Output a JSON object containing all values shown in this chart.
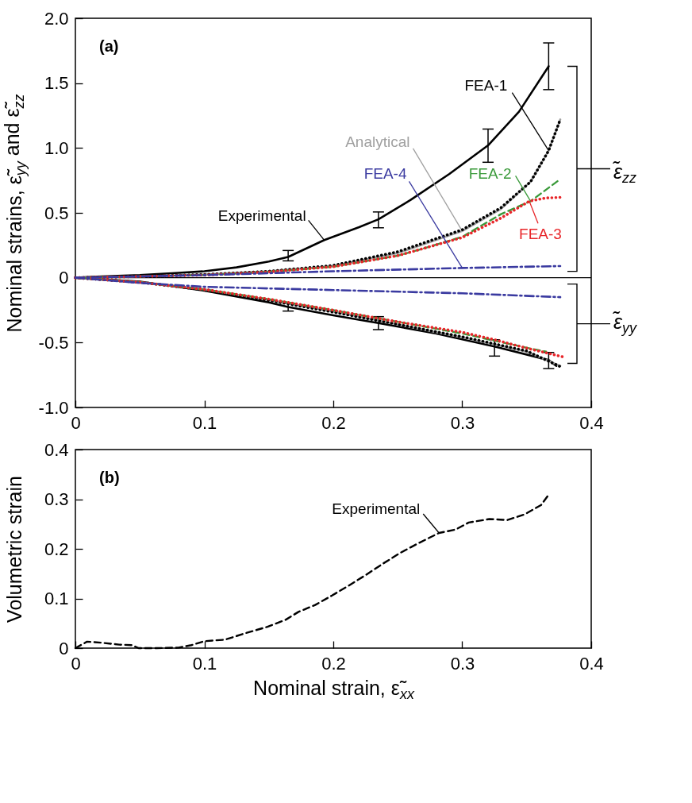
{
  "chart_data": [
    {
      "type": "line",
      "ylabel": "Nominal strains, ε̃$_{yy}$ and ε̃$_{zz}$",
      "annotations": [
        "(a)",
        "ε̃$_{zz}$",
        "ε̃$_{yy}$"
      ],
      "xlim": [
        0,
        0.4
      ],
      "xticks": [
        0,
        0.1,
        0.2,
        0.3,
        0.4
      ],
      "ylim": [
        -1,
        2
      ],
      "yticks": [
        {
          "value": -1,
          "label": "-1.0"
        },
        -0.5,
        0,
        0.5,
        {
          "value": 1,
          "label": "1.0"
        },
        1.5,
        {
          "value": 2,
          "label": "2.0"
        }
      ],
      "ref_lines": [
        {
          "axis": "y",
          "value": 0,
          "color": "#000000"
        }
      ],
      "series": [
        {
          "name": "Experimental",
          "color": "#000000",
          "line_style": "solid",
          "x": [
            0,
            0.02,
            0.05,
            0.075,
            0.1,
            0.125,
            0.15,
            0.165,
            0.193,
            0.22,
            0.235,
            0.26,
            0.29,
            0.32,
            0.344,
            0.367
          ],
          "values": [
            0,
            0.01,
            0.02,
            0.035,
            0.05,
            0.08,
            0.125,
            0.16,
            0.29,
            0.39,
            0.45,
            0.6,
            0.8,
            1.02,
            1.28,
            1.63
          ],
          "errors": [
            null,
            null,
            null,
            null,
            null,
            null,
            null,
            [
              0.13,
              0.21
            ],
            null,
            null,
            [
              0.385,
              0.507
            ],
            null,
            null,
            [
              0.89,
              1.146
            ],
            null,
            [
              1.45,
              1.81
            ]
          ]
        },
        {
          "color": "#000000",
          "line_style": "solid",
          "x": [
            0,
            0.05,
            0.1,
            0.15,
            0.165,
            0.2,
            0.235,
            0.28,
            0.325,
            0.367,
            0.373
          ],
          "values": [
            0,
            -0.03,
            -0.1,
            -0.19,
            -0.225,
            -0.29,
            -0.35,
            -0.43,
            -0.53,
            -0.635,
            -0.68
          ],
          "errors": [
            null,
            null,
            null,
            null,
            [
              -0.257,
              -0.196
            ],
            null,
            [
              -0.4,
              -0.3
            ],
            null,
            [
              -0.604,
              -0.478
            ],
            [
              -0.7,
              -0.576
            ],
            null
          ]
        },
        {
          "name": "Analytical",
          "color": "#a0a0a0",
          "line_style": "solid",
          "x": [
            0,
            0.05,
            0.1,
            0.15,
            0.2,
            0.25,
            0.3,
            0.33,
            0.353,
            0.367,
            0.376
          ],
          "values": [
            0,
            0.01,
            0.025,
            0.05,
            0.09,
            0.19,
            0.36,
            0.53,
            0.74,
            0.98,
            1.22
          ]
        },
        {
          "color": "#a0a0a0",
          "line_style": "solid",
          "x": [
            0,
            0.05,
            0.1,
            0.15,
            0.2,
            0.25,
            0.3,
            0.35,
            0.376
          ],
          "values": [
            0,
            -0.035,
            -0.09,
            -0.17,
            -0.26,
            -0.36,
            -0.46,
            -0.57,
            -0.68
          ]
        },
        {
          "name": "FEA-1",
          "color": "#000000",
          "line_style": "dotted",
          "x": [
            0,
            0.05,
            0.1,
            0.15,
            0.2,
            0.25,
            0.3,
            0.33,
            0.353,
            0.367,
            0.376
          ],
          "values": [
            0,
            0.01,
            0.025,
            0.05,
            0.095,
            0.2,
            0.37,
            0.54,
            0.74,
            0.98,
            1.22
          ]
        },
        {
          "color": "#000000",
          "line_style": "dotted",
          "x": [
            0,
            0.05,
            0.1,
            0.15,
            0.2,
            0.25,
            0.3,
            0.35,
            0.376
          ],
          "values": [
            0,
            -0.035,
            -0.093,
            -0.175,
            -0.265,
            -0.36,
            -0.455,
            -0.565,
            -0.685
          ]
        },
        {
          "name": "FEA-2",
          "color": "#3a9a3a",
          "line_style": "dashed",
          "x": [
            0,
            0.05,
            0.1,
            0.15,
            0.2,
            0.25,
            0.268,
            0.3,
            0.33,
            0.353,
            0.376
          ],
          "values": [
            0,
            0.01,
            0.02,
            0.045,
            0.085,
            0.17,
            0.22,
            0.315,
            0.49,
            0.59,
            0.76
          ]
        },
        {
          "color": "#3a9a3a",
          "line_style": "dashed",
          "x": [
            0,
            0.05,
            0.1,
            0.15,
            0.2,
            0.25,
            0.3,
            0.35,
            0.365
          ],
          "values": [
            0,
            -0.035,
            -0.09,
            -0.165,
            -0.25,
            -0.34,
            -0.43,
            -0.54,
            -0.57
          ]
        },
        {
          "name": "FEA-3",
          "color": "#e8262a",
          "line_style": "dotted",
          "x": [
            0,
            0.05,
            0.1,
            0.15,
            0.2,
            0.25,
            0.268,
            0.3,
            0.33,
            0.352,
            0.365,
            0.378
          ],
          "values": [
            0,
            0.01,
            0.02,
            0.045,
            0.085,
            0.17,
            0.22,
            0.31,
            0.46,
            0.59,
            0.615,
            0.62
          ]
        },
        {
          "color": "#e8262a",
          "line_style": "dotted",
          "x": [
            0,
            0.05,
            0.1,
            0.15,
            0.2,
            0.25,
            0.3,
            0.325,
            0.35,
            0.378
          ],
          "values": [
            0,
            -0.035,
            -0.09,
            -0.165,
            -0.25,
            -0.34,
            -0.42,
            -0.478,
            -0.543,
            -0.61
          ]
        },
        {
          "name": "FEA-4",
          "color": "#3a3aa0",
          "line_style": "dashdot",
          "x": [
            0,
            0.05,
            0.1,
            0.2,
            0.3,
            0.376
          ],
          "values": [
            0,
            0.01,
            0.02,
            0.05,
            0.075,
            0.09
          ]
        },
        {
          "color": "#3a3aa0",
          "line_style": "dashdot",
          "x": [
            0,
            0.05,
            0.1,
            0.2,
            0.3,
            0.376
          ],
          "values": [
            0,
            -0.04,
            -0.07,
            -0.095,
            -0.12,
            -0.15
          ]
        }
      ]
    },
    {
      "type": "line",
      "xlabel": "Nominal strain, ε̃$_{xx}$",
      "ylabel": "Volumetric strain",
      "annotations": [
        "(b)"
      ],
      "xlim": [
        0,
        0.4
      ],
      "xticks": [
        0,
        0.1,
        0.2,
        0.3,
        0.4
      ],
      "ylim": [
        0,
        0.4
      ],
      "yticks": [
        0,
        0.1,
        0.2,
        0.3,
        0.4
      ],
      "series": [
        {
          "name": "Experimental",
          "color": "#000000",
          "line_style": "dashed",
          "x": [
            0,
            0.009,
            0.02,
            0.034,
            0.044,
            0.049,
            0.063,
            0.08,
            0.09,
            0.1,
            0.116,
            0.133,
            0.149,
            0.163,
            0.173,
            0.186,
            0.199,
            0.212,
            0.225,
            0.239,
            0.252,
            0.265,
            0.282,
            0.295,
            0.305,
            0.321,
            0.335,
            0.348,
            0.361,
            0.367
          ],
          "values": [
            0,
            0.013,
            0.011,
            0.007,
            0.006,
            0,
            0,
            0.001,
            0.006,
            0.014,
            0.017,
            0.031,
            0.043,
            0.057,
            0.073,
            0.087,
            0.106,
            0.126,
            0.147,
            0.171,
            0.192,
            0.21,
            0.232,
            0.239,
            0.253,
            0.26,
            0.258,
            0.269,
            0.288,
            0.309
          ]
        }
      ]
    }
  ]
}
